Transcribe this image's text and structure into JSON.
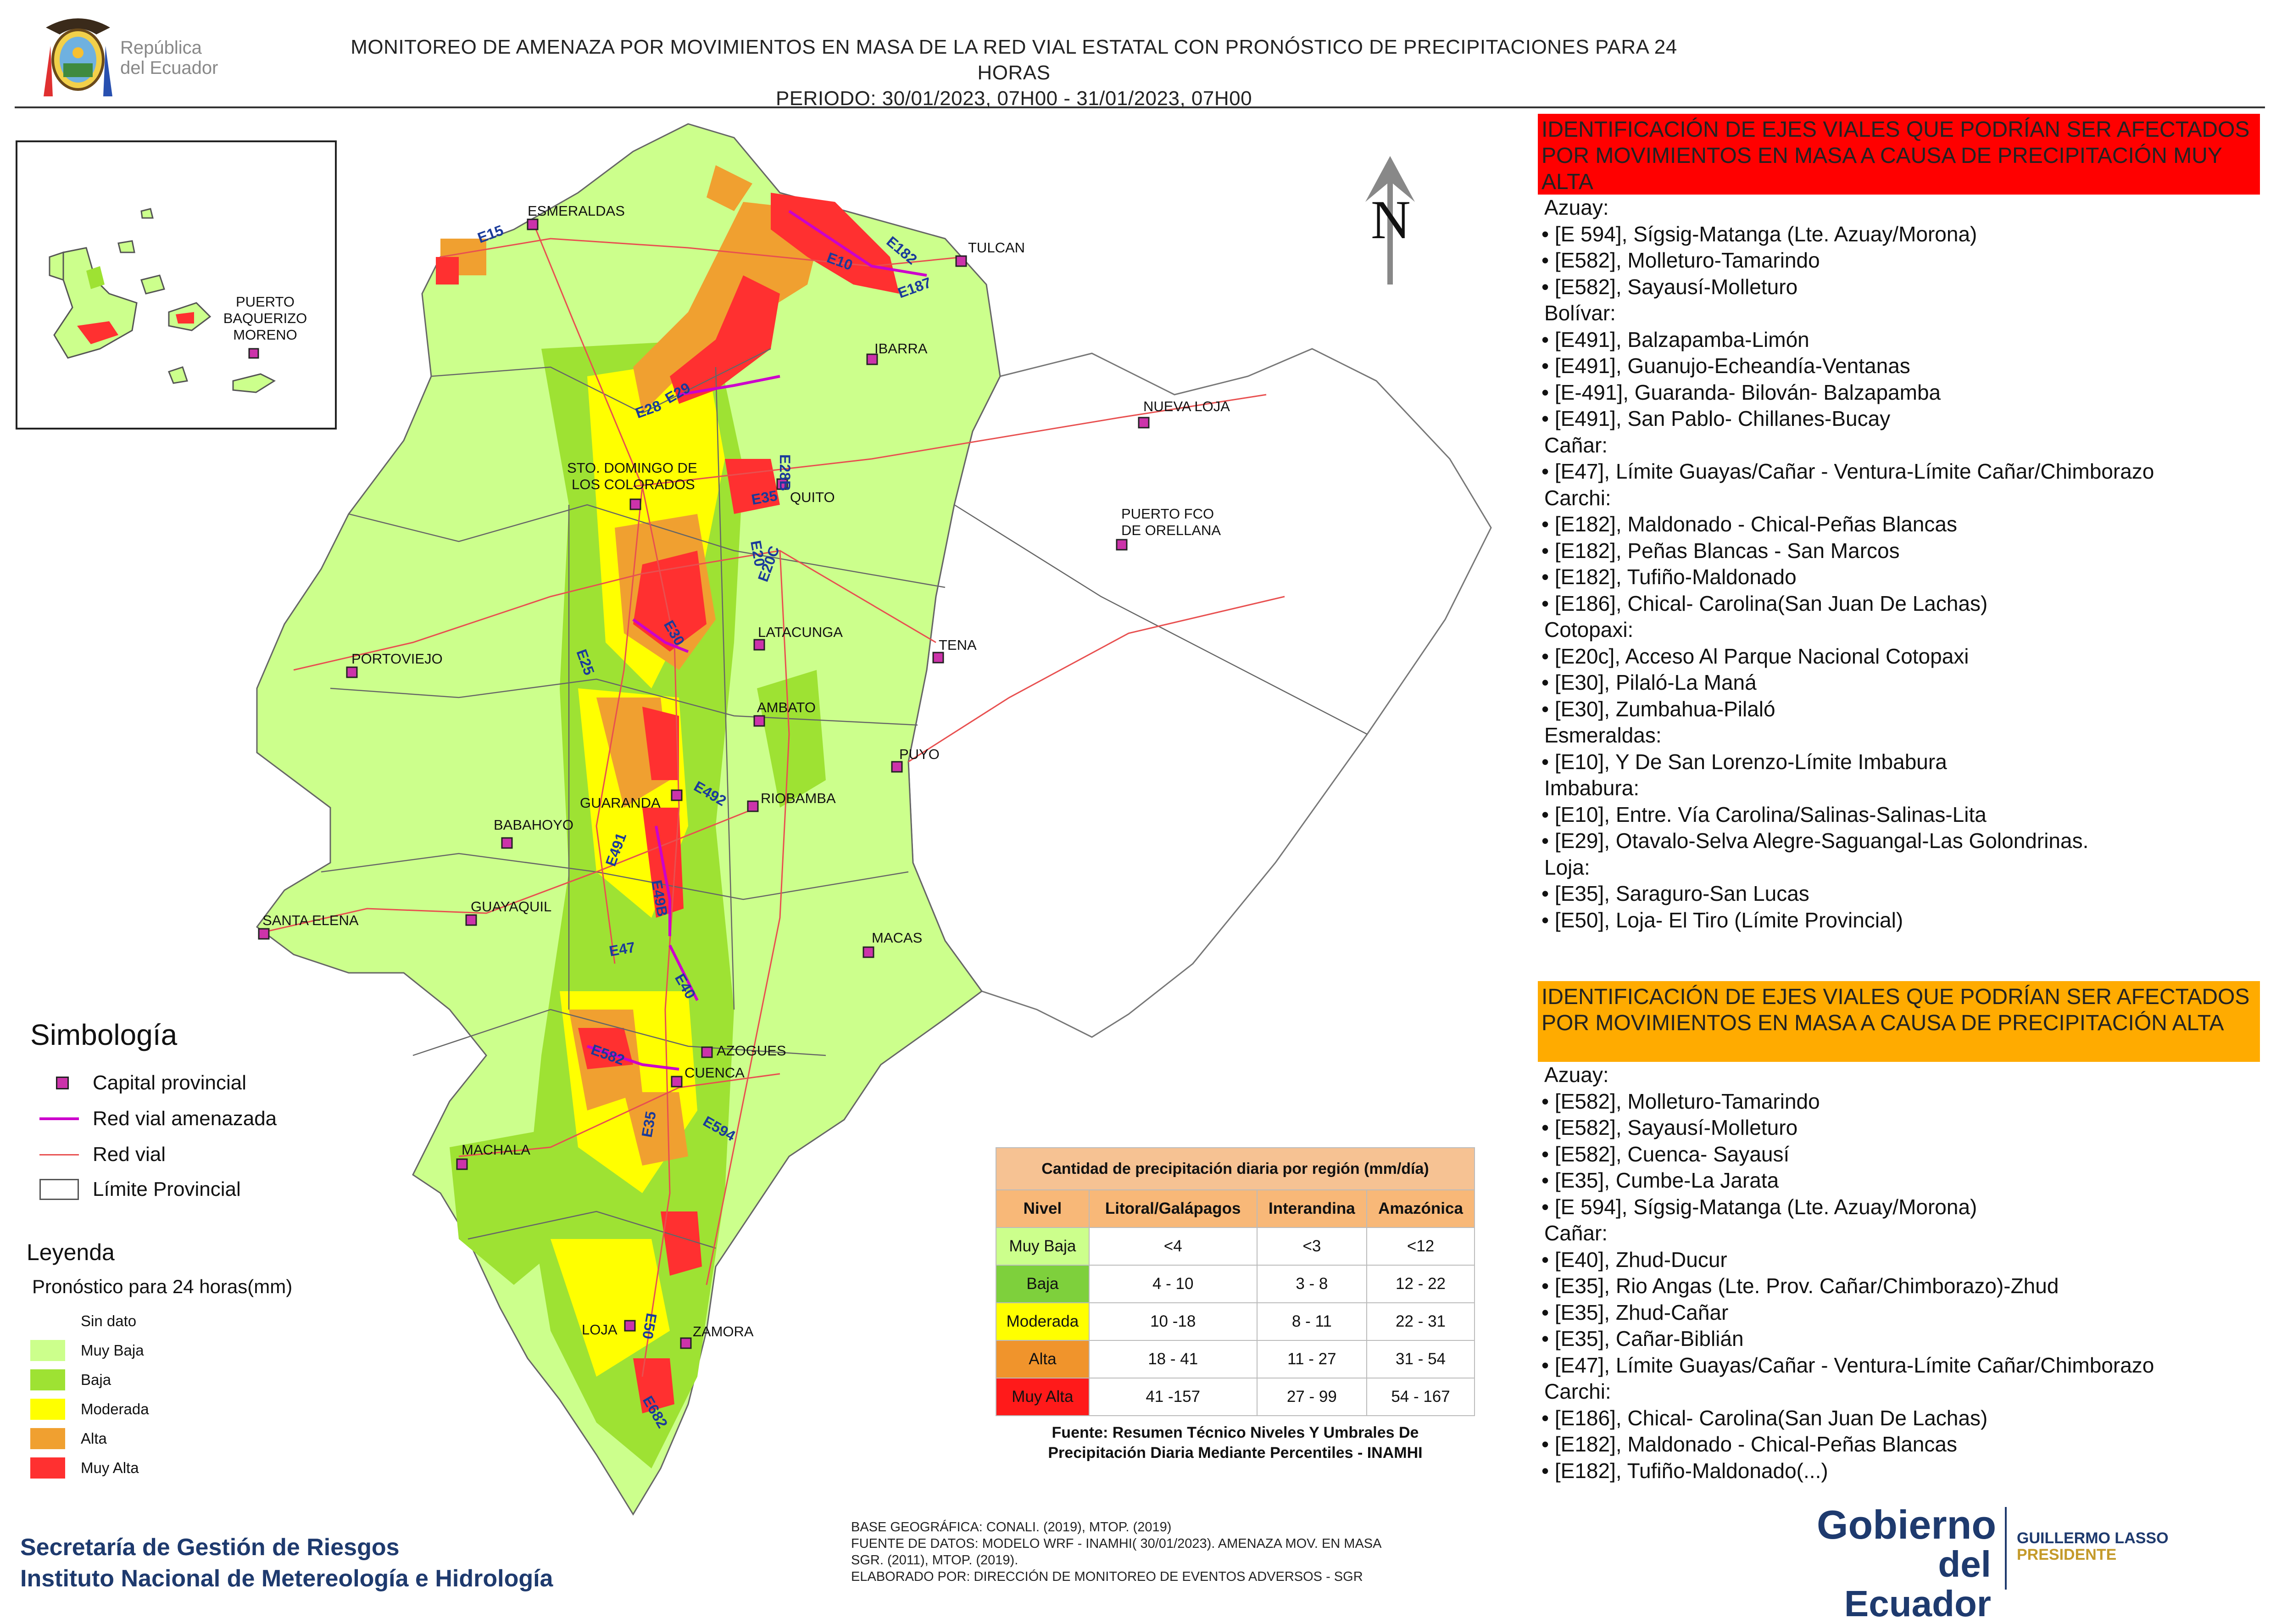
{
  "header": {
    "title_line1": "MONITOREO DE AMENAZA POR MOVIMIENTOS EN MASA DE LA RED VIAL  ESTATAL  CON PRONÓSTICO  DE  PRECIPITACIONES PARA 24 HORAS",
    "title_line2": "PERIODO: 30/01/2023, 07H00 - 31/01/2023, 07H00",
    "republic_line1": "República",
    "republic_line2": "del Ecuador"
  },
  "colors": {
    "sin_dato": "#ffffff",
    "muy_baja": "#ccff8c",
    "baja": "#9ee233",
    "moderada": "#ffff00",
    "alta": "#f0a030",
    "muy_alta": "#ff3030",
    "red_vial_amenazada": "#cc00cc",
    "red_vial": "#e85050",
    "capital": "#cc33aa"
  },
  "map": {
    "north_label": "N",
    "cities": [
      {
        "name": "ESMERALDAS"
      },
      {
        "name": "TULCAN"
      },
      {
        "name": "IBARRA"
      },
      {
        "name": "NUEVA LOJA"
      },
      {
        "name": "STO. DOMINGO DE"
      },
      {
        "name": "LOS COLORADOS"
      },
      {
        "name": "QUITO"
      },
      {
        "name": "PUERTO FCO"
      },
      {
        "name": "DE ORELLANA"
      },
      {
        "name": "LATACUNGA"
      },
      {
        "name": "TENA"
      },
      {
        "name": "PORTOVIEJO"
      },
      {
        "name": "AMBATO"
      },
      {
        "name": "PUYO"
      },
      {
        "name": "GUARANDA"
      },
      {
        "name": "RIOBAMBA"
      },
      {
        "name": "BABAHOYO"
      },
      {
        "name": "GUAYAQUIL"
      },
      {
        "name": "SANTA ELENA"
      },
      {
        "name": "MACAS"
      },
      {
        "name": "AZOGUES"
      },
      {
        "name": "CUENCA"
      },
      {
        "name": "MACHALA"
      },
      {
        "name": "LOJA"
      },
      {
        "name": "ZAMORA"
      }
    ],
    "inset_city_line1": "PUERTO",
    "inset_city_line2": "BAQUERIZO",
    "inset_city_line3": "MORENO",
    "road_labels": [
      "E15",
      "E10",
      "E182",
      "E187",
      "E29",
      "E28",
      "E28B",
      "E35",
      "E20",
      "E20C",
      "E30",
      "E25",
      "E492",
      "E491",
      "E49B",
      "E47",
      "E40",
      "E582",
      "E594",
      "E35",
      "E50",
      "E682"
    ]
  },
  "symbology": {
    "title": "Simbología",
    "items": [
      {
        "label": "Capital provincial"
      },
      {
        "label": "Red vial amenazada"
      },
      {
        "label": "Red vial"
      },
      {
        "label": "Límite Provincial"
      }
    ]
  },
  "legend": {
    "title": "Leyenda",
    "subtitle": "Pronóstico para 24 horas(mm)",
    "items": [
      {
        "label": "Sin dato",
        "color": "#ffffff"
      },
      {
        "label": " Muy Baja",
        "color": "#ccff8c"
      },
      {
        "label": "Baja",
        "color": "#9ee233"
      },
      {
        "label": "Moderada",
        "color": "#ffff00"
      },
      {
        "label": "Alta",
        "color": "#f0a030"
      },
      {
        "label": "Muy Alta",
        "color": "#ff3030"
      }
    ]
  },
  "precip_table": {
    "caption": "Cantidad de precipitación diaria por región (mm/día)",
    "headers": [
      "Nivel",
      "Litoral/Galápagos",
      "Interandina",
      "Amazónica"
    ],
    "rows": [
      {
        "level": "Muy Baja",
        "color": "#ccff8c",
        "litoral": "<4",
        "interandina": "<3",
        "amazonica": "<12"
      },
      {
        "level": "Baja",
        "color": "#7ed03c",
        "litoral": "4 - 10",
        "interandina": "3 - 8",
        "amazonica": "12 - 22"
      },
      {
        "level": "Moderada",
        "color": "#ffff00",
        "litoral": "10 -18",
        "interandina": "8 - 11",
        "amazonica": "22 - 31"
      },
      {
        "level": "Alta",
        "color": "#f0942c",
        "litoral": "18 - 41",
        "interandina": "11 - 27",
        "amazonica": "31 - 54"
      },
      {
        "level": "Muy Alta",
        "color": "#ff1a1a",
        "litoral": "41 -157",
        "interandina": "27 - 99",
        "amazonica": "54 - 167"
      }
    ],
    "source_line1": "Fuente: Resumen Técnico Niveles Y Umbrales De",
    "source_line2": "Precipitación Diaria Mediante Percentiles - INAMHI"
  },
  "footer": {
    "sgr_line1": "Secretaría de Gestión de Riesgos",
    "sgr_line2": "Instituto Nacional de Metereología e Hidrología",
    "credits_line1": "BASE GEOGRÁFICA: CONALI. (2019), MTOP. (2019)",
    "credits_line2": "FUENTE DE DATOS: MODELO WRF - INAMHI( 30/01/2023).  AMENAZA MOV. EN MASA",
    "credits_line3": "SGR. (2011), MTOP. (2019).",
    "credits_line4": "ELABORADO POR: DIRECCIÓN DE MONITOREO DE EVENTOS ADVERSOS - SGR",
    "gob_line1": "Gobierno",
    "gob_line2": "del Ecuador",
    "president_name": "GUILLERMO LASSO",
    "president_title": "PRESIDENTE"
  },
  "panel_muy_alta": {
    "heading": "IDENTIFICACIÓN DE EJES VIALES QUE PODRÍAN SER AFECTADOS POR MOVIMIENTOS EN MASA A CAUSA DE PRECIPITACIÓN MUY ALTA",
    "lines": [
      {
        "t": "Azuay:",
        "p": true
      },
      {
        "t": "• [E 594], Sígsig-Matanga (Lte. Azuay/Morona)"
      },
      {
        "t": "• [E582], Molleturo-Tamarindo"
      },
      {
        "t": "• [E582], Sayausí-Molleturo"
      },
      {
        "t": "Bolívar:",
        "p": true
      },
      {
        "t": "• [E491], Balzapamba-Limón"
      },
      {
        "t": "• [E491], Guanujo-Echeandía-Ventanas"
      },
      {
        "t": "• [E-491], Guaranda- Bilován- Balzapamba"
      },
      {
        "t": "• [E491], San Pablo- Chillanes-Bucay"
      },
      {
        "t": "Cañar:",
        "p": true
      },
      {
        "t": "• [E47], Límite Guayas/Cañar - Ventura-Límite Cañar/Chimborazo"
      },
      {
        "t": "Carchi:",
        "p": true
      },
      {
        "t": "• [E182], Maldonado - Chical-Peñas Blancas"
      },
      {
        "t": "• [E182], Peñas Blancas - San Marcos"
      },
      {
        "t": "• [E182], Tufiño-Maldonado"
      },
      {
        "t": "• [E186], Chical- Carolina(San Juan De Lachas)"
      },
      {
        "t": "Cotopaxi:",
        "p": true
      },
      {
        "t": "• [E20c], Acceso Al Parque Nacional Cotopaxi"
      },
      {
        "t": "• [E30], Pilaló-La Maná"
      },
      {
        "t": "• [E30], Zumbahua-Pilaló"
      },
      {
        "t": "Esmeraldas:",
        "p": true
      },
      {
        "t": "• [E10], Y De San Lorenzo-Límite Imbabura"
      },
      {
        "t": "Imbabura:",
        "p": true
      },
      {
        "t": "• [E10], Entre. Vía Carolina/Salinas-Salinas-Lita"
      },
      {
        "t": "• [E29], Otavalo-Selva Alegre-Saguangal-Las Golondrinas."
      },
      {
        "t": "Loja:",
        "p": true
      },
      {
        "t": "• [E35], Saraguro-San Lucas"
      },
      {
        "t": "• [E50], Loja- El Tiro (Límite Provincial)"
      }
    ]
  },
  "panel_alta": {
    "heading": "IDENTIFICACIÓN DE EJES VIALES QUE PODRÍAN SER AFECTADOS POR MOVIMIENTOS EN MASA A CAUSA DE PRECIPITACIÓN  ALTA",
    "lines": [
      {
        "t": "Azuay:",
        "p": true
      },
      {
        "t": "• [E582], Molleturo-Tamarindo"
      },
      {
        "t": "• [E582], Sayausí-Molleturo"
      },
      {
        "t": "• [E582], Cuenca- Sayausí"
      },
      {
        "t": "• [E35], Cumbe-La Jarata"
      },
      {
        "t": "• [E 594], Sígsig-Matanga (Lte. Azuay/Morona)"
      },
      {
        "t": "Cañar:",
        "p": true
      },
      {
        "t": "• [E40], Zhud-Ducur"
      },
      {
        "t": "• [E35], Rio Angas (Lte. Prov. Cañar/Chimborazo)-Zhud"
      },
      {
        "t": "• [E35], Zhud-Cañar"
      },
      {
        "t": "• [E35], Cañar-Biblián"
      },
      {
        "t": "• [E47], Límite Guayas/Cañar - Ventura-Límite Cañar/Chimborazo"
      },
      {
        "t": "Carchi:",
        "p": true
      },
      {
        "t": "• [E186], Chical- Carolina(San Juan De Lachas)"
      },
      {
        "t": "• [E182], Maldonado - Chical-Peñas Blancas"
      },
      {
        "t": "• [E182], Tufiño-Maldonado(...)"
      }
    ]
  }
}
